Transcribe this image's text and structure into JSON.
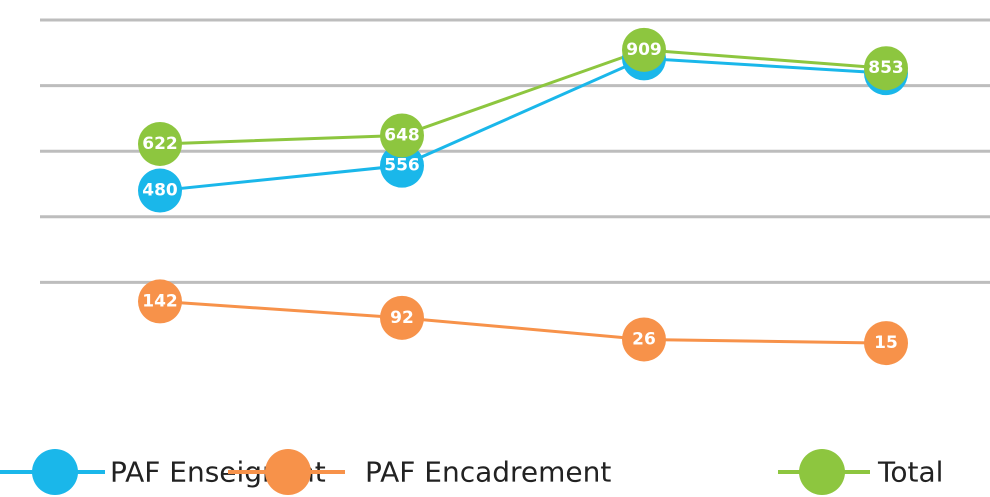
{
  "chart_data": {
    "type": "line",
    "categories": [
      null,
      null,
      null,
      null
    ],
    "series": [
      {
        "name": "PAF Enseignant",
        "color": "#1ab7ea",
        "values": [
          480,
          556,
          883,
          838
        ]
      },
      {
        "name": "PAF Encadrement",
        "color": "#f7924a",
        "values": [
          142,
          92,
          26,
          15
        ]
      },
      {
        "name": "Total",
        "color": "#8dc63f",
        "values": [
          622,
          648,
          909,
          853
        ]
      }
    ],
    "ylim": [
      0,
      1000
    ],
    "yticks": [
      200,
      400,
      600,
      800,
      1000
    ],
    "grid": true,
    "legend": "bottom"
  }
}
